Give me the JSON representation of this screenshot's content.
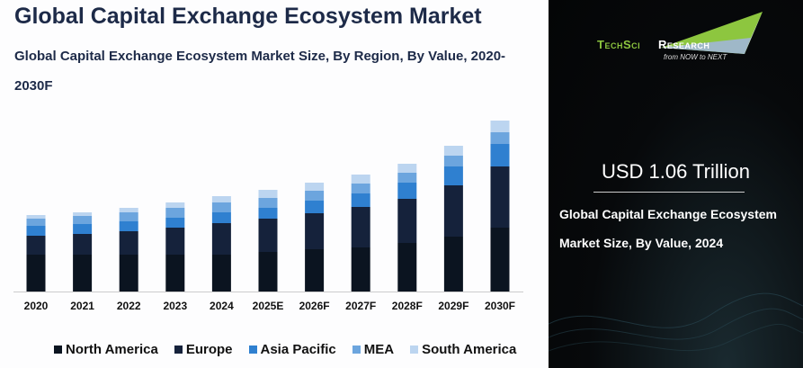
{
  "title": "Global Capital Exchange Ecosystem Market",
  "subtitle": "Global Capital Exchange Ecosystem Market Size, By Region, By Value, 2020-2030F",
  "chart_data": {
    "type": "bar",
    "stacked": true,
    "categories": [
      "2020",
      "2021",
      "2022",
      "2023",
      "2024",
      "2025E",
      "2026F",
      "2027F",
      "2028F",
      "2029F",
      "2030F"
    ],
    "series": [
      {
        "name": "North America",
        "color": "#0b1420",
        "values": [
          0.41,
          0.41,
          0.41,
          0.41,
          0.41,
          0.44,
          0.47,
          0.49,
          0.54,
          0.61,
          0.71
        ]
      },
      {
        "name": "Europe",
        "color": "#15223b",
        "values": [
          0.21,
          0.23,
          0.26,
          0.3,
          0.35,
          0.37,
          0.4,
          0.45,
          0.49,
          0.57,
          0.68
        ]
      },
      {
        "name": "Asia Pacific",
        "color": "#2f80d0",
        "values": [
          0.11,
          0.11,
          0.11,
          0.11,
          0.12,
          0.12,
          0.14,
          0.15,
          0.18,
          0.21,
          0.25
        ]
      },
      {
        "name": "MEA",
        "color": "#6ca5de",
        "values": [
          0.08,
          0.09,
          0.1,
          0.11,
          0.11,
          0.11,
          0.11,
          0.11,
          0.11,
          0.12,
          0.13
        ]
      },
      {
        "name": "South America",
        "color": "#bcd5f0",
        "values": [
          0.04,
          0.04,
          0.05,
          0.06,
          0.07,
          0.09,
          0.09,
          0.1,
          0.1,
          0.11,
          0.13
        ]
      }
    ],
    "xlabel": "",
    "ylabel": "",
    "ylim": [
      0,
      2.0
    ],
    "grid": false,
    "legend_position": "bottom"
  },
  "logo": {
    "brand_a": "TechSci",
    "brand_b": "Research",
    "tagline": "from NOW to NEXT"
  },
  "highlight": {
    "value": "USD 1.06 Trillion",
    "description": "Global Capital Exchange Ecosystem Market Size, By Value, 2024"
  }
}
